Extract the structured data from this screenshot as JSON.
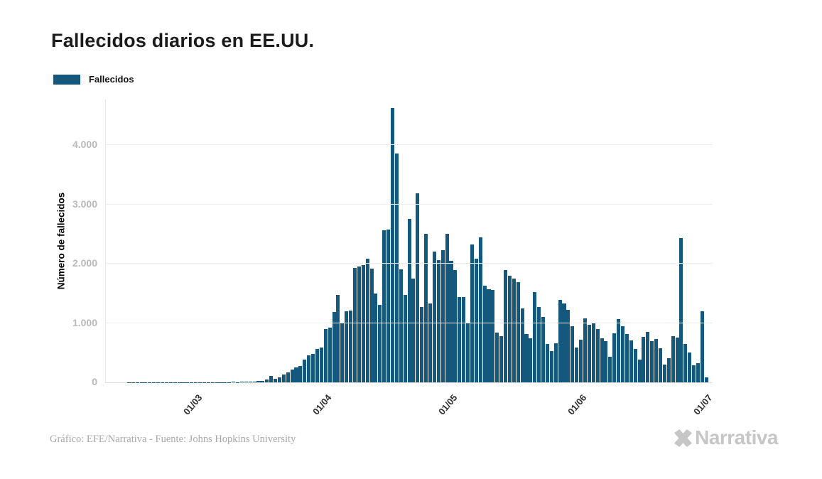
{
  "title": "Fallecidos diarios en EE.UU.",
  "legend": {
    "label": "Fallecidos"
  },
  "y_axis": {
    "title": "Número de fallecidos"
  },
  "footer": {
    "credit": "Gráfico: EFE/Narrativa - Fuente: Johns Hopkins University"
  },
  "logo": {
    "text": "Narrativa"
  },
  "colors": {
    "bar": "#14587D",
    "grid": "#ededed",
    "y_tick_text": "#b9b9b9",
    "x_tick_text": "#2e2e2e",
    "title_text": "#1b1b1b",
    "footer_text": "#a8a8a8",
    "logo_gray": "#c6c6c6"
  },
  "chart_data": {
    "type": "bar",
    "title": "Fallecidos diarios en EE.UU.",
    "series_name": "Fallecidos",
    "xlabel": "",
    "ylabel": "Número de fallecidos",
    "x_unit": "day (daily bars, mid-February through early July)",
    "y_max": 4770,
    "grid": true,
    "legend_position": "top-left",
    "y_ticks": [
      {
        "label": "0",
        "value": 0
      },
      {
        "label": "1.000",
        "value": 1000
      },
      {
        "label": "2.000",
        "value": 2000
      },
      {
        "label": "3.000",
        "value": 3000
      },
      {
        "label": "4.000",
        "value": 4000
      }
    ],
    "x_ticks": [
      {
        "label": "01/03",
        "index": 21
      },
      {
        "label": "01/04",
        "index": 52
      },
      {
        "label": "01/05",
        "index": 82
      },
      {
        "label": "01/06",
        "index": 113
      },
      {
        "label": "01/07",
        "index": 143
      }
    ],
    "values": [
      0,
      0,
      0,
      0,
      0,
      2,
      1,
      2,
      1,
      2,
      1,
      2,
      2,
      1,
      2,
      2,
      3,
      2,
      3,
      4,
      5,
      3,
      4,
      2,
      5,
      4,
      3,
      4,
      5,
      6,
      8,
      6,
      12,
      10,
      14,
      15,
      22,
      28,
      45,
      110,
      60,
      85,
      135,
      170,
      220,
      255,
      280,
      385,
      455,
      480,
      565,
      590,
      900,
      925,
      1190,
      1480,
      1010,
      1200,
      1205,
      1930,
      1955,
      1980,
      2090,
      1915,
      1500,
      1310,
      2565,
      2580,
      4630,
      3860,
      1905,
      1475,
      2755,
      1755,
      3185,
      1265,
      2500,
      1325,
      2210,
      2060,
      2225,
      2505,
      2050,
      1895,
      1440,
      1435,
      1005,
      2330,
      2085,
      2450,
      1625,
      1570,
      1555,
      840,
      785,
      1890,
      1800,
      1745,
      1685,
      1245,
      815,
      745,
      1525,
      1270,
      1105,
      645,
      525,
      665,
      1385,
      1325,
      1225,
      945,
      585,
      720,
      1075,
      970,
      995,
      905,
      745,
      695,
      430,
      825,
      1065,
      945,
      815,
      705,
      560,
      385,
      765,
      850,
      695,
      730,
      575,
      300,
      410,
      780,
      755,
      2435,
      650,
      505,
      290,
      325,
      1200,
      90,
      0
    ]
  }
}
